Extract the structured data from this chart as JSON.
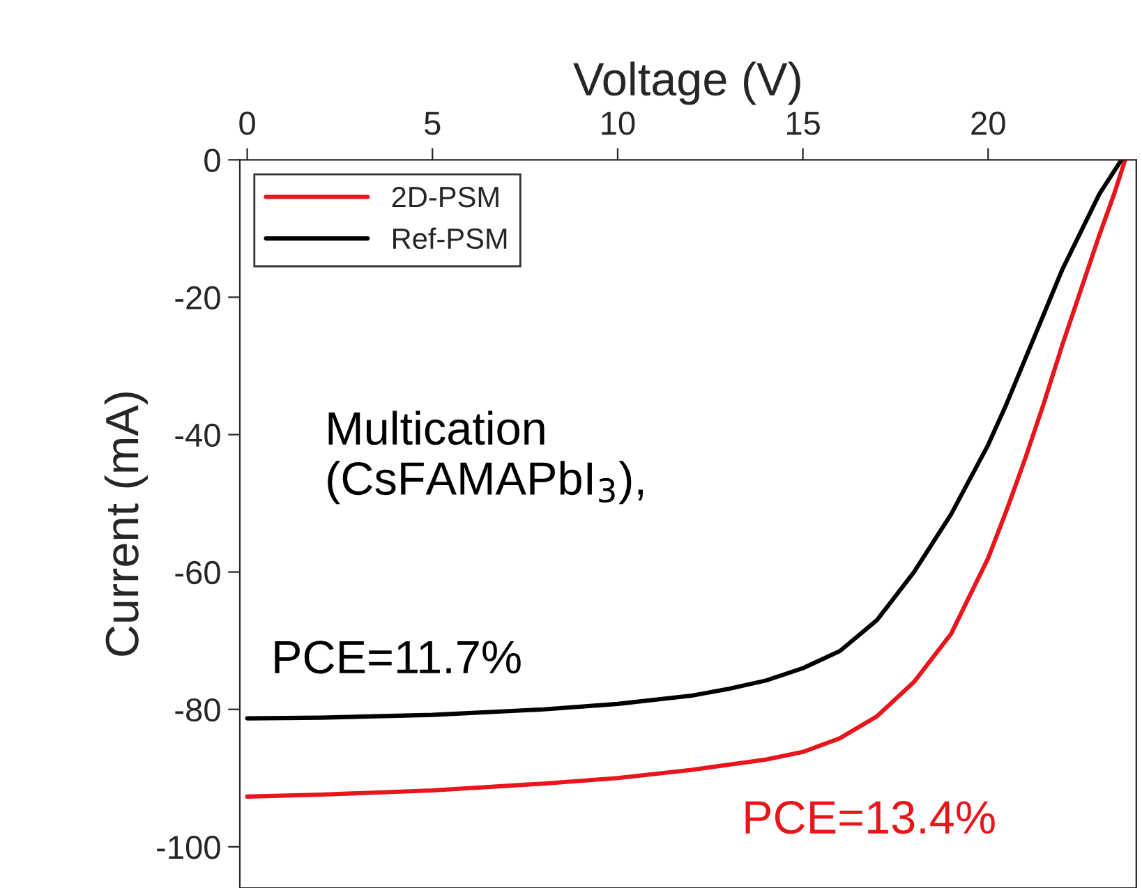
{
  "chart_data": {
    "type": "line",
    "xlabel": "Voltage (V)",
    "ylabel": "Current (mA)",
    "xlim": [
      -0.2,
      24
    ],
    "xticks": [
      0,
      5,
      10,
      15,
      20
    ],
    "ylim": [
      -106,
      0
    ],
    "yticks": [
      0,
      -20,
      -40,
      -60,
      -80,
      -100
    ],
    "legend": "top left",
    "grid": false,
    "marker": "none",
    "line_style": "solid",
    "series": [
      {
        "name": "2D-PSM",
        "color": "#e8151b",
        "x": [
          0,
          2,
          5,
          8,
          10,
          12,
          14,
          15,
          16,
          17,
          18,
          19,
          20,
          20.5,
          21,
          21.5,
          22,
          22.5,
          23,
          23.4,
          23.7
        ],
        "values": [
          -92.7,
          -92.4,
          -91.8,
          -90.8,
          -90,
          -88.8,
          -87.3,
          -86.2,
          -84.2,
          -81,
          -76,
          -69,
          -58,
          -51,
          -43.5,
          -35.5,
          -27,
          -19,
          -11,
          -5,
          0
        ]
      },
      {
        "name": "Ref-PSM",
        "color": "#000000",
        "x": [
          0,
          2,
          5,
          8,
          10,
          12,
          13,
          14,
          15,
          16,
          17,
          18,
          19,
          20,
          20.5,
          21,
          21.5,
          22,
          22.5,
          23,
          23.3,
          23.6
        ],
        "values": [
          -81.3,
          -81.2,
          -80.8,
          -80,
          -79.2,
          -78,
          -77,
          -75.8,
          -74,
          -71.5,
          -67,
          -60,
          -51.6,
          -41.5,
          -35.5,
          -29,
          -22.5,
          -16,
          -10.5,
          -5,
          -2.5,
          0
        ]
      }
    ],
    "annotations": [
      "Multication\n(CsFAMAPbI$_{3}$),",
      "PCE=11.7%",
      "PCE=13.4%"
    ]
  }
}
